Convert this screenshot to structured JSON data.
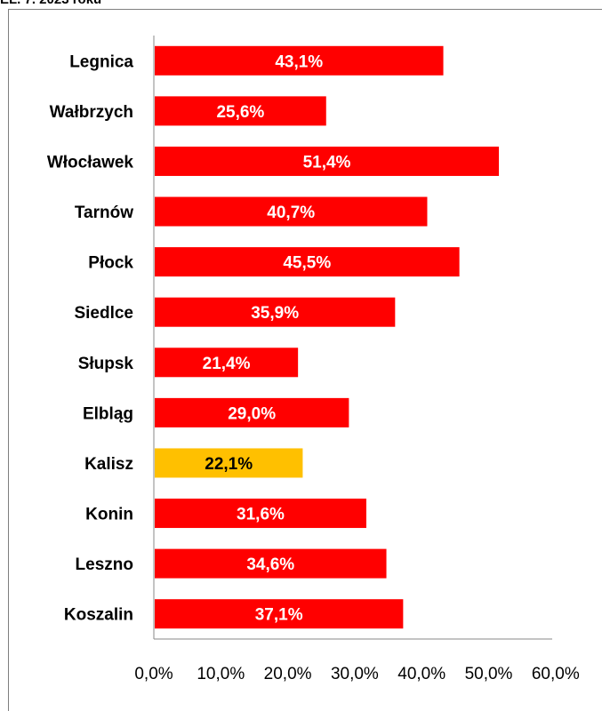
{
  "caption": "EL. 7. 2023 roku",
  "chart_data": {
    "type": "bar",
    "orientation": "horizontal",
    "categories": [
      "Legnica",
      "Wałbrzych",
      "Włocławek",
      "Tarnów",
      "Płock",
      "Siedlce",
      "Słupsk",
      "Elbląg",
      "Kalisz",
      "Konin",
      "Leszno",
      "Koszalin"
    ],
    "values": [
      43.1,
      25.6,
      51.4,
      40.7,
      45.5,
      35.9,
      21.4,
      29.0,
      22.1,
      31.6,
      34.6,
      37.1
    ],
    "data_labels": [
      "43,1%",
      "25,6%",
      "51,4%",
      "40,7%",
      "45,5%",
      "35,9%",
      "21,4%",
      "29,0%",
      "22,1%",
      "31,6%",
      "34,6%",
      "37,1%"
    ],
    "xlim": [
      0,
      60
    ],
    "x_ticks": [
      "0,0%",
      "10,0%",
      "20,0%",
      "30,0%",
      "40,0%",
      "50,0%",
      "60,0%"
    ],
    "grid": false,
    "colors": {
      "default": "#ff0000",
      "highlight": "#ffc000",
      "highlight_category": "Kalisz",
      "label_on_default": "#ffffff",
      "label_on_highlight": "#000000"
    }
  }
}
